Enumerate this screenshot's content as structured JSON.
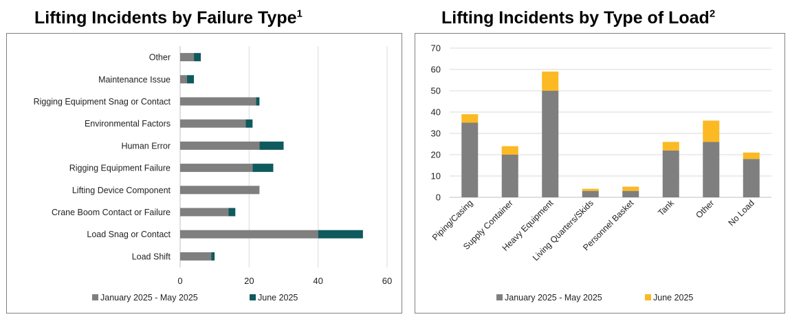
{
  "chart_data": [
    {
      "type": "bar",
      "orientation": "horizontal",
      "stacked": true,
      "title": "Lifting Incidents by Failure Type",
      "title_footnote": "1",
      "categories": [
        "Other",
        "Maintenance Issue",
        "Rigging Equipment Snag or Contact",
        "Environmental Factors",
        "Human Error",
        "Rigging Equipment Failure",
        "Lifting Device Component",
        "Crane Boom Contact or Failure",
        "Load Snag or Contact",
        "Load Shift"
      ],
      "series": [
        {
          "name": "January 2025 - May 2025",
          "color": "#7f7f7f",
          "values": [
            4,
            2,
            22,
            19,
            23,
            21,
            23,
            14,
            40,
            9
          ]
        },
        {
          "name": "June 2025",
          "color": "#0f5a5c",
          "values": [
            2,
            2,
            1,
            2,
            7,
            6,
            0,
            2,
            13,
            1
          ]
        }
      ],
      "xlim": [
        0,
        60
      ],
      "xticks": [
        0,
        20,
        40,
        60
      ],
      "grid": "vertical",
      "legend": "bottom"
    },
    {
      "type": "bar",
      "orientation": "vertical",
      "stacked": true,
      "title": "Lifting Incidents by Type of Load",
      "title_footnote": "2",
      "categories": [
        "Piping/Casing",
        "Supply Container",
        "Heavy Equipment",
        "Living Quarters/Skids",
        "Personnel Basket",
        "Tank",
        "Other",
        "No Load"
      ],
      "series": [
        {
          "name": "January 2025 - May 2025",
          "color": "#7f7f7f",
          "values": [
            35,
            20,
            50,
            3,
            3,
            22,
            26,
            18
          ]
        },
        {
          "name": "June 2025",
          "color": "#fbb924",
          "values": [
            4,
            4,
            9,
            1,
            2,
            4,
            10,
            3
          ]
        }
      ],
      "ylim": [
        0,
        70
      ],
      "yticks": [
        0,
        10,
        20,
        30,
        40,
        50,
        60,
        70
      ],
      "grid": "horizontal",
      "legend": "bottom"
    }
  ]
}
